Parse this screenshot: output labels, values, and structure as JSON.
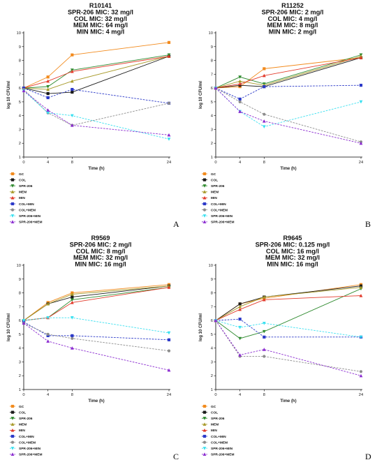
{
  "series_styles": [
    {
      "name": "GC",
      "color": "#f28a1c",
      "dash": false,
      "marker": "square"
    },
    {
      "name": "COL",
      "color": "#1a1a1a",
      "dash": false,
      "marker": "square"
    },
    {
      "name": "SPR-206",
      "color": "#2e8a2e",
      "dash": false,
      "marker": "tri-down"
    },
    {
      "name": "MEM",
      "color": "#a89a2a",
      "dash": false,
      "marker": "tri-up"
    },
    {
      "name": "MIN",
      "color": "#e23a2a",
      "dash": false,
      "marker": "tri-up"
    },
    {
      "name": "COL+MIN",
      "color": "#2a38c8",
      "dash": true,
      "marker": "square"
    },
    {
      "name": "COL+MEM",
      "color": "#8c8c8c",
      "dash": true,
      "marker": "circle"
    },
    {
      "name": "SPR-206+MIN",
      "color": "#38e0f0",
      "dash": true,
      "marker": "tri-down"
    },
    {
      "name": "SPR-206+MEM",
      "color": "#8a2ad0",
      "dash": true,
      "marker": "tri-up"
    }
  ],
  "chart_data": [
    {
      "type": "line",
      "panel_letter": "A",
      "title": [
        "R10141",
        "SPR-206 MIC: 32 mg/l",
        "COL MIC: 32 mg/l",
        "MEM MIC: 64 mg/l",
        "MIN MIC: 4 mg/l"
      ],
      "xlabel": "Time (h)",
      "ylabel": "log 10 CFU/ml",
      "x": [
        0,
        4,
        8,
        24
      ],
      "xticks": [
        "0",
        "4",
        "8",
        "24"
      ],
      "ylim": [
        1,
        10
      ],
      "yticks": [
        "1",
        "2",
        "3",
        "4",
        "5",
        "6",
        "7",
        "8",
        "9",
        "10"
      ],
      "legend_placement": "bottom-left",
      "series": [
        {
          "name": "GC",
          "values": [
            6.0,
            6.8,
            8.4,
            9.3
          ]
        },
        {
          "name": "COL",
          "values": [
            6.0,
            5.6,
            5.7,
            8.3
          ]
        },
        {
          "name": "SPR-206",
          "values": [
            6.0,
            6.1,
            7.3,
            8.4
          ]
        },
        {
          "name": "MEM",
          "values": [
            6.0,
            5.9,
            6.5,
            8.3
          ]
        },
        {
          "name": "MIN",
          "values": [
            6.0,
            6.5,
            7.2,
            8.3
          ]
        },
        {
          "name": "COL+MIN",
          "values": [
            6.0,
            5.3,
            5.9,
            4.9
          ]
        },
        {
          "name": "COL+MEM",
          "values": [
            5.9,
            4.2,
            3.3,
            4.9
          ]
        },
        {
          "name": "SPR-206+MIN",
          "values": [
            5.8,
            4.2,
            4.0,
            2.3
          ]
        },
        {
          "name": "SPR-206+MEM",
          "values": [
            5.8,
            4.4,
            3.3,
            2.6
          ]
        }
      ]
    },
    {
      "type": "line",
      "panel_letter": "B",
      "title": [
        "R11252",
        "SPR-206 MIC: 2 mg/l",
        "COL MIC: 4 mg/l",
        "MEM MIC: 8 mg/l",
        "MIN MIC: 2 mg/l"
      ],
      "xlabel": "Time (h)",
      "ylabel": "log 10 CFU/ml",
      "x": [
        0,
        4,
        8,
        24
      ],
      "xticks": [
        "0",
        "4",
        "8",
        "24"
      ],
      "ylim": [
        1,
        10
      ],
      "yticks": [
        "1",
        "2",
        "3",
        "4",
        "5",
        "6",
        "7",
        "8",
        "9",
        "10"
      ],
      "legend_placement": "bottom-left",
      "series": [
        {
          "name": "GC",
          "values": [
            6.0,
            6.1,
            7.4,
            8.2
          ]
        },
        {
          "name": "COL",
          "values": [
            6.0,
            6.2,
            6.1,
            8.2
          ]
        },
        {
          "name": "SPR-206",
          "values": [
            6.0,
            6.8,
            6.3,
            8.4
          ]
        },
        {
          "name": "MEM",
          "values": [
            6.0,
            6.5,
            6.2,
            8.3
          ]
        },
        {
          "name": "MIN",
          "values": [
            6.0,
            6.3,
            6.9,
            8.2
          ]
        },
        {
          "name": "COL+MIN",
          "values": [
            6.0,
            5.2,
            6.1,
            6.2
          ]
        },
        {
          "name": "COL+MEM",
          "values": [
            6.0,
            5.0,
            4.1,
            2.1
          ]
        },
        {
          "name": "SPR-206+MIN",
          "values": [
            6.0,
            4.3,
            3.2,
            5.0
          ]
        },
        {
          "name": "SPR-206+MEM",
          "values": [
            6.0,
            4.3,
            3.6,
            2.0
          ]
        }
      ]
    },
    {
      "type": "line",
      "panel_letter": "C",
      "title": [
        "R9569",
        "SPR-206 MIC: 2 mg/l",
        "COL MIC: 8 mg/l",
        "MEM MIC: 32 mg/l",
        "MIN MIC: 16 mg/l"
      ],
      "xlabel": "Time (h)",
      "ylabel": "log 10 CFU/ml",
      "x": [
        0,
        4,
        8,
        24
      ],
      "xticks": [
        "0",
        "4",
        "8",
        "24"
      ],
      "ylim": [
        1,
        10
      ],
      "yticks": [
        "1",
        "2",
        "3",
        "4",
        "5",
        "6",
        "7",
        "8",
        "9",
        "10"
      ],
      "legend_placement": "bottom-left",
      "series": [
        {
          "name": "GC",
          "values": [
            6.0,
            7.3,
            8.0,
            8.6
          ]
        },
        {
          "name": "COL",
          "values": [
            6.0,
            7.2,
            7.7,
            8.5
          ]
        },
        {
          "name": "SPR-206",
          "values": [
            6.0,
            6.2,
            7.5,
            8.4
          ]
        },
        {
          "name": "MEM",
          "values": [
            6.0,
            7.2,
            7.9,
            8.5
          ]
        },
        {
          "name": "MIN",
          "values": [
            6.0,
            6.2,
            7.3,
            8.4
          ]
        },
        {
          "name": "COL+MIN",
          "values": [
            5.9,
            4.9,
            4.9,
            4.6
          ]
        },
        {
          "name": "COL+MEM",
          "values": [
            5.8,
            5.0,
            4.7,
            3.8
          ]
        },
        {
          "name": "SPR-206+MIN",
          "values": [
            6.0,
            6.2,
            6.2,
            5.1
          ]
        },
        {
          "name": "SPR-206+MEM",
          "values": [
            5.8,
            4.5,
            4.0,
            2.4
          ]
        }
      ]
    },
    {
      "type": "line",
      "panel_letter": "D",
      "title": [
        "R9645",
        "SPR-206 MIC: 0.125 mg/l",
        "COL MIC: 16 mg/l",
        "MEM MIC: 32 mg/l",
        "MIN MIC: 16 mg/l"
      ],
      "xlabel": "Time (h)",
      "ylabel": "log 10 CFU/ml",
      "x": [
        0,
        4,
        8,
        24
      ],
      "xticks": [
        "0",
        "4",
        "8",
        "24"
      ],
      "ylim": [
        1,
        10
      ],
      "yticks": [
        "1",
        "2",
        "3",
        "4",
        "5",
        "6",
        "7",
        "8",
        "9",
        "10"
      ],
      "legend_placement": "bottom-left",
      "series": [
        {
          "name": "GC",
          "values": [
            6.0,
            7.2,
            7.6,
            8.6
          ]
        },
        {
          "name": "COL",
          "values": [
            6.0,
            7.2,
            7.7,
            8.5
          ]
        },
        {
          "name": "SPR-206",
          "values": [
            6.0,
            4.7,
            5.2,
            8.3
          ]
        },
        {
          "name": "MEM",
          "values": [
            6.0,
            7.0,
            7.7,
            8.4
          ]
        },
        {
          "name": "MIN",
          "values": [
            6.0,
            6.8,
            7.5,
            7.8
          ]
        },
        {
          "name": "COL+MIN",
          "values": [
            6.0,
            6.1,
            4.8,
            4.8
          ]
        },
        {
          "name": "COL+MEM",
          "values": [
            6.0,
            3.4,
            3.4,
            2.3
          ]
        },
        {
          "name": "SPR-206+MIN",
          "values": [
            6.0,
            5.5,
            5.8,
            4.8
          ]
        },
        {
          "name": "SPR-206+MEM",
          "values": [
            6.0,
            3.5,
            3.9,
            2.0
          ]
        }
      ]
    }
  ]
}
